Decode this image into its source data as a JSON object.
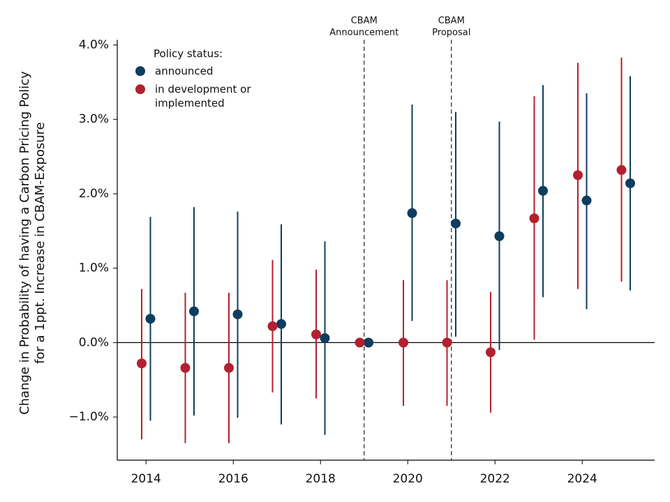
{
  "chart_data": {
    "type": "errorbar",
    "y_label": [
      "Change in Probability of having a Carbon Pricing Policy",
      "for a 1ppt. Increase in CBAM-Exposure"
    ],
    "legend_title": "Policy status:",
    "legend_position": "upper left",
    "xlim": [
      2013.34,
      2025.66
    ],
    "xticks": [
      2014,
      2016,
      2018,
      2020,
      2022,
      2024
    ],
    "ylim": [
      -1.58,
      4.07
    ],
    "yticks": [
      {
        "value": -1,
        "label": "−1.0%"
      },
      {
        "value": 0,
        "label": "0.0%"
      },
      {
        "value": 1,
        "label": "1.0%"
      },
      {
        "value": 2,
        "label": "2.0%"
      },
      {
        "value": 3,
        "label": "3.0%"
      },
      {
        "value": 4,
        "label": "4.0%"
      }
    ],
    "hline": 0,
    "vlines": [
      {
        "x": 2019,
        "label": [
          "CBAM",
          "Announcement"
        ]
      },
      {
        "x": 2021,
        "label": [
          "CBAM",
          "Proposal"
        ]
      }
    ],
    "series": [
      {
        "name": "announced",
        "color": "#0e3d5e",
        "x": [
          2014.1,
          2015.1,
          2016.1,
          2017.1,
          2018.1,
          2019.1,
          2020.1,
          2021.1,
          2022.1,
          2023.1,
          2024.1,
          2025.1
        ],
        "values": [
          0.32,
          0.42,
          0.38,
          0.25,
          0.06,
          0,
          1.74,
          1.6,
          1.43,
          2.04,
          1.91,
          2.14
        ],
        "lower": [
          -1.05,
          -0.98,
          -1.01,
          -1.1,
          -1.24,
          null,
          0.29,
          0.08,
          -0.1,
          0.61,
          0.45,
          0.7
        ],
        "upper": [
          1.69,
          1.82,
          1.76,
          1.59,
          1.36,
          null,
          3.2,
          3.1,
          2.97,
          3.46,
          3.35,
          3.58
        ]
      },
      {
        "name": "in development or implemented",
        "color": "#b3202f",
        "x": [
          2013.9,
          2014.9,
          2015.9,
          2016.9,
          2017.9,
          2018.9,
          2019.9,
          2020.9,
          2021.9,
          2022.9,
          2023.9,
          2024.9
        ],
        "values": [
          -0.28,
          -0.34,
          -0.34,
          0.22,
          0.11,
          0,
          0,
          0,
          -0.13,
          1.67,
          2.25,
          2.32
        ],
        "lower": [
          -1.3,
          -1.35,
          -1.35,
          -0.67,
          -0.75,
          null,
          -0.85,
          -0.85,
          -0.94,
          0.04,
          0.72,
          0.82
        ],
        "upper": [
          0.72,
          0.67,
          0.67,
          1.11,
          0.98,
          null,
          0.84,
          0.84,
          0.68,
          3.31,
          3.76,
          3.83
        ]
      }
    ]
  }
}
